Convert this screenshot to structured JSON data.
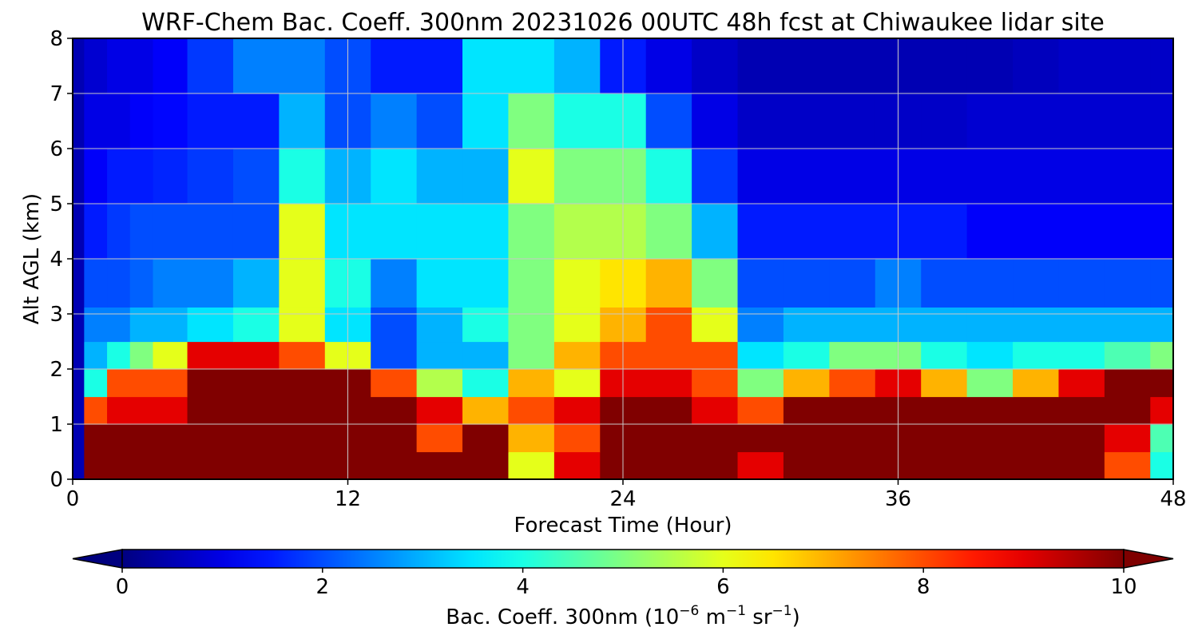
{
  "chart_data": {
    "type": "heatmap",
    "title": "WRF-Chem Bac. Coeff. 300nm  20231026 00UTC 48h fcst at Chiwaukee lidar site",
    "xlabel": "Forecast Time (Hour)",
    "ylabel": "Alt AGL (km)",
    "xlim": [
      0,
      48
    ],
    "ylim": [
      0,
      8
    ],
    "xticks": [
      "0",
      "12",
      "24",
      "36",
      "48"
    ],
    "yticks": [
      "0",
      "1",
      "2",
      "3",
      "4",
      "5",
      "6",
      "7",
      "8"
    ],
    "grid": true,
    "colormap": "jet",
    "colorbar": {
      "label_main": "Bac. Coeff. 300nm  (10",
      "label_exp1": "−6",
      "label_unit1": " m",
      "label_exp2": "−1",
      "label_unit2": " sr",
      "label_exp3": "−1",
      "label_close": ")",
      "ticks": [
        "0",
        "2",
        "4",
        "6",
        "8",
        "10"
      ],
      "range": [
        0,
        10
      ],
      "extend": "both",
      "under_color": "#00007f",
      "over_color": "#7f0000"
    },
    "x": [
      0,
      1,
      2,
      3,
      4,
      6,
      8,
      10,
      12,
      14,
      16,
      18,
      20,
      22,
      24,
      26,
      28,
      30,
      32,
      34,
      36,
      38,
      40,
      42,
      44,
      46,
      48
    ],
    "y": [
      0.25,
      0.75,
      1.25,
      1.75,
      2.25,
      2.75,
      3.5,
      4.5,
      5.5,
      6.5,
      7.5
    ],
    "z": [
      [
        0.5,
        10,
        10,
        10,
        10,
        10,
        10,
        10,
        10,
        10,
        10,
        10,
        6,
        9,
        10,
        10,
        10,
        9,
        10,
        10,
        10,
        10,
        10,
        10,
        10,
        8,
        4
      ],
      [
        0.5,
        10,
        10,
        10,
        10,
        10,
        10,
        10,
        10,
        10,
        8,
        10,
        7,
        8,
        10,
        10,
        10,
        10,
        10,
        10,
        10,
        10,
        10,
        10,
        10,
        9,
        4.5
      ],
      [
        0.5,
        8,
        9,
        9,
        9,
        10,
        10,
        10,
        10,
        10,
        9,
        7,
        8,
        9,
        10,
        10,
        9,
        8,
        10,
        10,
        10,
        10,
        10,
        10,
        10,
        10,
        9
      ],
      [
        0.5,
        4,
        8,
        8,
        8,
        10,
        10,
        10,
        10,
        8,
        5.5,
        4,
        7,
        6,
        9,
        9,
        8,
        5,
        7,
        8,
        9,
        7,
        5,
        7,
        9,
        10,
        10
      ],
      [
        0.5,
        3,
        4,
        5,
        6,
        9,
        9,
        8,
        6,
        2,
        3,
        3,
        5,
        7,
        8,
        8,
        8,
        3.5,
        4,
        5,
        5,
        4,
        3.5,
        4,
        4,
        4.5,
        5
      ],
      [
        0.5,
        2.5,
        2.5,
        3,
        3,
        3.5,
        4,
        6,
        3.5,
        2,
        3,
        4,
        5,
        6,
        7,
        8,
        6,
        2.5,
        3,
        3,
        3,
        3,
        3,
        3,
        3,
        3,
        3
      ],
      [
        0.5,
        2,
        2,
        2.2,
        2.5,
        2.5,
        3,
        6,
        4,
        2.5,
        3.5,
        3.5,
        5,
        6,
        6.5,
        7,
        5,
        2,
        2,
        2,
        2.5,
        2,
        2,
        2,
        2,
        2,
        2
      ],
      [
        0.5,
        1.5,
        1.8,
        2,
        2,
        2,
        2,
        6,
        3.5,
        3.5,
        3.5,
        3.5,
        5,
        5.5,
        5.5,
        5,
        3,
        1.5,
        1.5,
        1.5,
        1.5,
        1.5,
        1.2,
        1.2,
        1.2,
        1.2,
        1.2
      ],
      [
        0.5,
        1.2,
        1.5,
        1.5,
        1.6,
        1.8,
        2,
        4,
        3,
        3.5,
        3,
        3,
        6,
        5,
        5,
        4,
        1.8,
        1,
        1,
        1,
        1,
        1,
        1,
        1,
        1,
        1,
        1
      ],
      [
        0.5,
        1,
        1,
        1.2,
        1.3,
        1.5,
        1.5,
        3,
        2,
        2.5,
        2,
        3.5,
        5,
        4,
        4,
        2,
        1,
        0.7,
        0.7,
        0.7,
        0.7,
        0.7,
        0.8,
        0.8,
        0.8,
        0.8,
        0.8
      ],
      [
        0.5,
        0.8,
        1,
        1,
        1.2,
        1.8,
        2.5,
        2.5,
        2,
        1.5,
        1.5,
        3.5,
        3.5,
        3,
        1.5,
        1,
        0.7,
        0.5,
        0.5,
        0.5,
        0.5,
        0.5,
        0.5,
        0.6,
        0.7,
        0.7,
        0.7
      ]
    ]
  }
}
